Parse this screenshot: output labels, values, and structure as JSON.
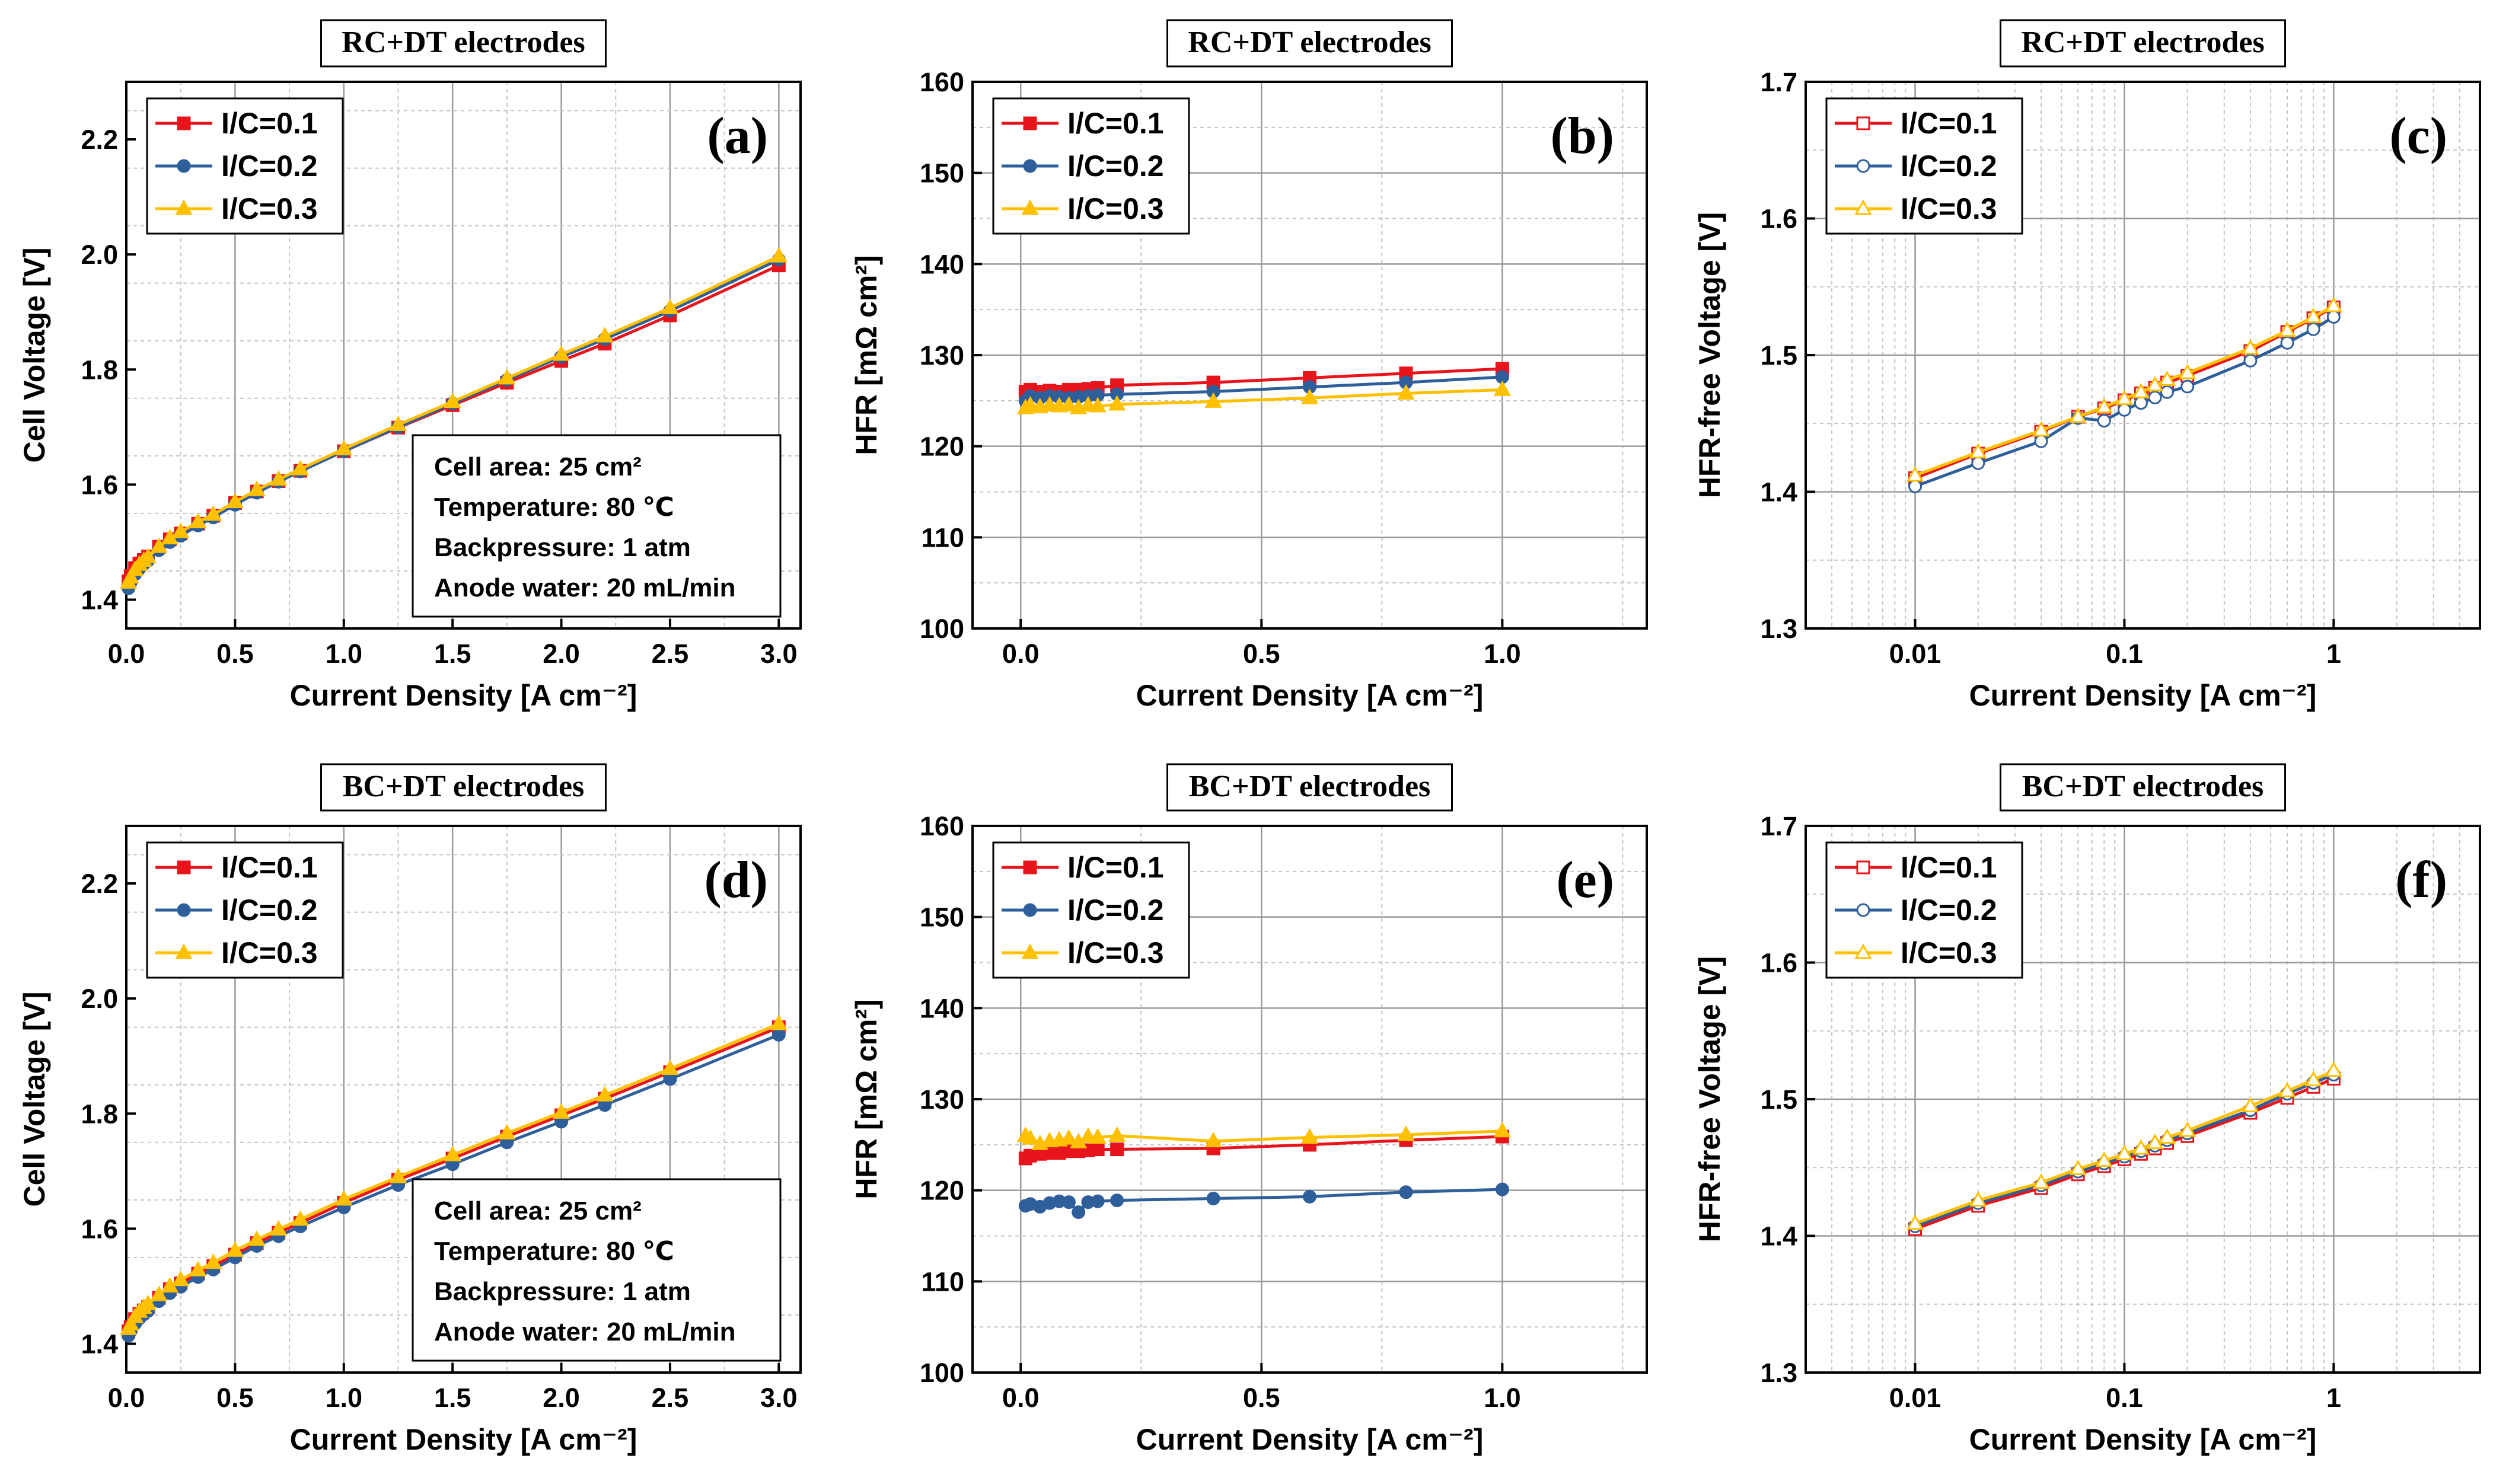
{
  "chart_data": [
    {
      "id": "a",
      "type": "line",
      "title": "RC+DT electrodes",
      "panel_label": "(a)",
      "xlabel": "Current Density [A cm⁻²]",
      "ylabel": "Cell Voltage [V]",
      "xscale": "linear",
      "xlim": [
        0,
        3.1
      ],
      "ylim": [
        1.35,
        2.3
      ],
      "xticks": [
        0.0,
        0.5,
        1.0,
        1.5,
        2.0,
        2.5,
        3.0
      ],
      "xtick_labels": [
        "0.0",
        "0.5",
        "1.0",
        "1.5",
        "2.0",
        "2.5",
        "3.0"
      ],
      "yticks": [
        1.4,
        1.6,
        1.8,
        2.0,
        2.2
      ],
      "ytick_labels": [
        "1.4",
        "1.6",
        "1.8",
        "2.0",
        "2.2"
      ],
      "grid": true,
      "legend_position": "top-left",
      "series": [
        {
          "name": "I/C=0.1",
          "color": "#e8141c",
          "marker": "square",
          "filled": true,
          "x": [
            0.01,
            0.02,
            0.04,
            0.06,
            0.08,
            0.1,
            0.15,
            0.2,
            0.25,
            0.33,
            0.4,
            0.5,
            0.6,
            0.7,
            0.8,
            1.0,
            1.25,
            1.5,
            1.75,
            2.0,
            2.2,
            2.5,
            3.0
          ],
          "y": [
            1.432,
            1.441,
            1.455,
            1.463,
            1.469,
            1.475,
            1.492,
            1.505,
            1.515,
            1.532,
            1.546,
            1.568,
            1.588,
            1.606,
            1.624,
            1.658,
            1.699,
            1.738,
            1.777,
            1.815,
            1.845,
            1.894,
            1.981
          ]
        },
        {
          "name": "I/C=0.2",
          "color": "#2e5f9b",
          "marker": "circle",
          "filled": true,
          "x": [
            0.01,
            0.02,
            0.04,
            0.06,
            0.08,
            0.1,
            0.15,
            0.2,
            0.25,
            0.33,
            0.4,
            0.5,
            0.6,
            0.7,
            0.8,
            1.0,
            1.25,
            1.5,
            1.75,
            2.0,
            2.2,
            2.5,
            3.0
          ],
          "y": [
            1.42,
            1.43,
            1.444,
            1.454,
            1.462,
            1.468,
            1.486,
            1.5,
            1.511,
            1.529,
            1.543,
            1.565,
            1.586,
            1.605,
            1.623,
            1.658,
            1.7,
            1.741,
            1.782,
            1.822,
            1.853,
            1.902,
            1.991
          ]
        },
        {
          "name": "I/C=0.3",
          "color": "#ffc000",
          "marker": "triangle",
          "filled": true,
          "x": [
            0.01,
            0.02,
            0.04,
            0.06,
            0.08,
            0.1,
            0.15,
            0.2,
            0.25,
            0.33,
            0.4,
            0.5,
            0.6,
            0.7,
            0.8,
            1.0,
            1.25,
            1.5,
            1.75,
            2.0,
            2.2,
            2.5,
            3.0
          ],
          "y": [
            1.43,
            1.439,
            1.452,
            1.461,
            1.468,
            1.474,
            1.492,
            1.507,
            1.518,
            1.535,
            1.548,
            1.57,
            1.591,
            1.609,
            1.627,
            1.662,
            1.704,
            1.744,
            1.785,
            1.826,
            1.858,
            1.907,
            1.997
          ]
        }
      ],
      "info_box": [
        "Cell area: 25 cm²",
        "Temperature: 80 ℃",
        "Backpressure: 1 atm",
        "Anode water: 20 mL/min"
      ]
    },
    {
      "id": "b",
      "type": "line",
      "title": "RC+DT electrodes",
      "panel_label": "(b)",
      "xlabel": "Current Density [A cm⁻²]",
      "ylabel": "HFR [mΩ cm²]",
      "xscale": "linear",
      "xlim": [
        -0.1,
        1.3
      ],
      "ylim": [
        100,
        160
      ],
      "xticks": [
        0.0,
        0.5,
        1.0
      ],
      "xtick_labels": [
        "0.0",
        "0.5",
        "1.0"
      ],
      "yticks": [
        100,
        110,
        120,
        130,
        140,
        150,
        160
      ],
      "ytick_labels": [
        "100",
        "110",
        "120",
        "130",
        "140",
        "150",
        "160"
      ],
      "grid": true,
      "legend_position": "top-left",
      "series": [
        {
          "name": "I/C=0.1",
          "color": "#e8141c",
          "marker": "square",
          "filled": true,
          "x": [
            0.01,
            0.02,
            0.04,
            0.06,
            0.08,
            0.1,
            0.12,
            0.14,
            0.16,
            0.2,
            0.4,
            0.6,
            0.8,
            1.0
          ],
          "y": [
            126.0,
            126.2,
            126.0,
            126.1,
            126.0,
            126.2,
            126.2,
            126.3,
            126.4,
            126.7,
            127.0,
            127.5,
            128.0,
            128.5
          ]
        },
        {
          "name": "I/C=0.2",
          "color": "#2e5f9b",
          "marker": "circle",
          "filled": true,
          "x": [
            0.01,
            0.02,
            0.04,
            0.06,
            0.08,
            0.1,
            0.12,
            0.14,
            0.16,
            0.2,
            0.4,
            0.6,
            0.8,
            1.0
          ],
          "y": [
            125.0,
            125.5,
            125.3,
            125.5,
            125.4,
            125.3,
            125.4,
            125.5,
            125.6,
            125.7,
            126.0,
            126.5,
            127.0,
            127.6
          ]
        },
        {
          "name": "I/C=0.3",
          "color": "#ffc000",
          "marker": "triangle",
          "filled": true,
          "x": [
            0.01,
            0.02,
            0.04,
            0.06,
            0.08,
            0.1,
            0.12,
            0.14,
            0.16,
            0.2,
            0.4,
            0.6,
            0.8,
            1.0
          ],
          "y": [
            124.2,
            124.5,
            124.3,
            124.5,
            124.4,
            124.5,
            124.2,
            124.5,
            124.4,
            124.6,
            124.9,
            125.3,
            125.8,
            126.2
          ]
        }
      ]
    },
    {
      "id": "c",
      "type": "line",
      "title": "RC+DT electrodes",
      "panel_label": "(c)",
      "xlabel": "Current Density [A cm⁻²]",
      "ylabel": "HFR-free Voltage [V]",
      "xscale": "log",
      "xlim": [
        0.003,
        5
      ],
      "ylim": [
        1.3,
        1.7
      ],
      "xticks": [
        0.01,
        0.1,
        1
      ],
      "xtick_labels": [
        "0.01",
        "0.1",
        "1"
      ],
      "yticks": [
        1.3,
        1.4,
        1.5,
        1.6,
        1.7
      ],
      "ytick_labels": [
        "1.3",
        "1.4",
        "1.5",
        "1.6",
        "1.7"
      ],
      "grid": true,
      "legend_position": "top-left",
      "series": [
        {
          "name": "I/C=0.1",
          "color": "#e8141c",
          "marker": "square",
          "filled": false,
          "x": [
            0.01,
            0.02,
            0.04,
            0.06,
            0.08,
            0.1,
            0.12,
            0.14,
            0.16,
            0.2,
            0.4,
            0.6,
            0.8,
            1.0
          ],
          "y": [
            1.41,
            1.428,
            1.444,
            1.455,
            1.461,
            1.467,
            1.472,
            1.476,
            1.48,
            1.485,
            1.503,
            1.517,
            1.527,
            1.535
          ]
        },
        {
          "name": "I/C=0.2",
          "color": "#2e5f9b",
          "marker": "circle",
          "filled": false,
          "x": [
            0.01,
            0.02,
            0.04,
            0.06,
            0.08,
            0.1,
            0.12,
            0.14,
            0.16,
            0.2,
            0.4,
            0.6,
            0.8,
            1.0
          ],
          "y": [
            1.404,
            1.421,
            1.437,
            1.454,
            1.452,
            1.46,
            1.465,
            1.469,
            1.473,
            1.477,
            1.496,
            1.509,
            1.519,
            1.528
          ]
        },
        {
          "name": "I/C=0.3",
          "color": "#ffc000",
          "marker": "triangle",
          "filled": false,
          "x": [
            0.01,
            0.02,
            0.04,
            0.06,
            0.08,
            0.1,
            0.12,
            0.14,
            0.16,
            0.2,
            0.4,
            0.6,
            0.8,
            1.0
          ],
          "y": [
            1.412,
            1.429,
            1.445,
            1.455,
            1.462,
            1.468,
            1.473,
            1.478,
            1.482,
            1.487,
            1.505,
            1.518,
            1.528,
            1.536
          ]
        }
      ]
    },
    {
      "id": "d",
      "type": "line",
      "title": "BC+DT electrodes",
      "panel_label": "(d)",
      "xlabel": "Current Density [A cm⁻²]",
      "ylabel": "Cell Voltage [V]",
      "xscale": "linear",
      "xlim": [
        0,
        3.1
      ],
      "ylim": [
        1.35,
        2.3
      ],
      "xticks": [
        0.0,
        0.5,
        1.0,
        1.5,
        2.0,
        2.5,
        3.0
      ],
      "xtick_labels": [
        "0.0",
        "0.5",
        "1.0",
        "1.5",
        "2.0",
        "2.5",
        "3.0"
      ],
      "yticks": [
        1.4,
        1.6,
        1.8,
        2.0,
        2.2
      ],
      "ytick_labels": [
        "1.4",
        "1.6",
        "1.8",
        "2.0",
        "2.2"
      ],
      "grid": true,
      "legend_position": "top-left",
      "series": [
        {
          "name": "I/C=0.1",
          "color": "#e8141c",
          "marker": "square",
          "filled": true,
          "x": [
            0.01,
            0.02,
            0.04,
            0.06,
            0.08,
            0.1,
            0.15,
            0.2,
            0.25,
            0.33,
            0.4,
            0.5,
            0.6,
            0.7,
            0.8,
            1.0,
            1.25,
            1.5,
            1.75,
            2.0,
            2.2,
            2.5,
            3.0
          ],
          "y": [
            1.422,
            1.43,
            1.443,
            1.452,
            1.458,
            1.464,
            1.48,
            1.495,
            1.505,
            1.522,
            1.535,
            1.555,
            1.575,
            1.593,
            1.61,
            1.645,
            1.685,
            1.722,
            1.76,
            1.797,
            1.826,
            1.872,
            1.95
          ]
        },
        {
          "name": "I/C=0.2",
          "color": "#2e5f9b",
          "marker": "circle",
          "filled": true,
          "x": [
            0.01,
            0.02,
            0.04,
            0.06,
            0.08,
            0.1,
            0.15,
            0.2,
            0.25,
            0.33,
            0.4,
            0.5,
            0.6,
            0.7,
            0.8,
            1.0,
            1.25,
            1.5,
            1.75,
            2.0,
            2.2,
            2.5,
            3.0
          ],
          "y": [
            1.414,
            1.422,
            1.435,
            1.444,
            1.451,
            1.457,
            1.474,
            1.488,
            1.499,
            1.516,
            1.529,
            1.55,
            1.57,
            1.587,
            1.604,
            1.637,
            1.676,
            1.712,
            1.75,
            1.786,
            1.815,
            1.86,
            1.937
          ]
        },
        {
          "name": "I/C=0.3",
          "color": "#ffc000",
          "marker": "triangle",
          "filled": true,
          "x": [
            0.01,
            0.02,
            0.04,
            0.06,
            0.08,
            0.1,
            0.15,
            0.2,
            0.25,
            0.33,
            0.4,
            0.5,
            0.6,
            0.7,
            0.8,
            1.0,
            1.25,
            1.5,
            1.75,
            2.0,
            2.2,
            2.5,
            3.0
          ],
          "y": [
            1.426,
            1.434,
            1.447,
            1.456,
            1.463,
            1.469,
            1.485,
            1.5,
            1.511,
            1.528,
            1.541,
            1.562,
            1.581,
            1.599,
            1.616,
            1.651,
            1.69,
            1.728,
            1.766,
            1.802,
            1.832,
            1.878,
            1.956
          ]
        }
      ],
      "info_box": [
        "Cell area: 25 cm²",
        "Temperature: 80 ℃",
        "Backpressure: 1 atm",
        "Anode water: 20 mL/min"
      ]
    },
    {
      "id": "e",
      "type": "line",
      "title": "BC+DT electrodes",
      "panel_label": "(e)",
      "xlabel": "Current Density [A cm⁻²]",
      "ylabel": "HFR [mΩ cm²]",
      "xscale": "linear",
      "xlim": [
        -0.1,
        1.3
      ],
      "ylim": [
        100,
        160
      ],
      "xticks": [
        0.0,
        0.5,
        1.0
      ],
      "xtick_labels": [
        "0.0",
        "0.5",
        "1.0"
      ],
      "yticks": [
        100,
        110,
        120,
        130,
        140,
        150,
        160
      ],
      "ytick_labels": [
        "100",
        "110",
        "120",
        "130",
        "140",
        "150",
        "160"
      ],
      "grid": true,
      "legend_position": "top-left",
      "series": [
        {
          "name": "I/C=0.1",
          "color": "#e8141c",
          "marker": "square",
          "filled": true,
          "x": [
            0.01,
            0.02,
            0.04,
            0.06,
            0.08,
            0.1,
            0.12,
            0.14,
            0.16,
            0.2,
            0.4,
            0.6,
            0.8,
            1.0
          ],
          "y": [
            123.5,
            123.8,
            124.0,
            124.1,
            124.1,
            124.3,
            124.3,
            124.4,
            124.5,
            124.5,
            124.6,
            125.0,
            125.5,
            125.9
          ]
        },
        {
          "name": "I/C=0.2",
          "color": "#2e5f9b",
          "marker": "circle",
          "filled": true,
          "x": [
            0.01,
            0.02,
            0.04,
            0.06,
            0.08,
            0.1,
            0.12,
            0.14,
            0.16,
            0.2,
            0.4,
            0.6,
            0.8,
            1.0
          ],
          "y": [
            118.3,
            118.5,
            118.2,
            118.6,
            118.8,
            118.7,
            117.6,
            118.7,
            118.8,
            118.9,
            119.1,
            119.3,
            119.8,
            120.1
          ]
        },
        {
          "name": "I/C=0.3",
          "color": "#ffc000",
          "marker": "triangle",
          "filled": true,
          "x": [
            0.01,
            0.02,
            0.04,
            0.06,
            0.08,
            0.1,
            0.12,
            0.14,
            0.16,
            0.2,
            0.4,
            0.6,
            0.8,
            1.0
          ],
          "y": [
            126.0,
            125.7,
            125.1,
            125.4,
            125.5,
            125.7,
            125.3,
            125.9,
            125.8,
            126.0,
            125.4,
            125.8,
            126.1,
            126.5
          ]
        }
      ]
    },
    {
      "id": "f",
      "type": "line",
      "title": "BC+DT electrodes",
      "panel_label": "(f)",
      "xlabel": "Current Density [A cm⁻²]",
      "ylabel": "HFR-free Voltage [V]",
      "xscale": "log",
      "xlim": [
        0.003,
        5
      ],
      "ylim": [
        1.3,
        1.7
      ],
      "xticks": [
        0.01,
        0.1,
        1
      ],
      "xtick_labels": [
        "0.01",
        "0.1",
        "1"
      ],
      "yticks": [
        1.3,
        1.4,
        1.5,
        1.6,
        1.7
      ],
      "ytick_labels": [
        "1.3",
        "1.4",
        "1.5",
        "1.6",
        "1.7"
      ],
      "grid": true,
      "legend_position": "top-left",
      "series": [
        {
          "name": "I/C=0.1",
          "color": "#e8141c",
          "marker": "square",
          "filled": false,
          "x": [
            0.01,
            0.02,
            0.04,
            0.06,
            0.08,
            0.1,
            0.12,
            0.14,
            0.16,
            0.2,
            0.4,
            0.6,
            0.8,
            1.0
          ],
          "y": [
            1.405,
            1.422,
            1.435,
            1.445,
            1.451,
            1.456,
            1.46,
            1.464,
            1.468,
            1.473,
            1.49,
            1.501,
            1.509,
            1.515
          ]
        },
        {
          "name": "I/C=0.2",
          "color": "#2e5f9b",
          "marker": "circle",
          "filled": false,
          "x": [
            0.01,
            0.02,
            0.04,
            0.06,
            0.08,
            0.1,
            0.12,
            0.14,
            0.16,
            0.2,
            0.4,
            0.6,
            0.8,
            1.0
          ],
          "y": [
            1.407,
            1.424,
            1.437,
            1.447,
            1.453,
            1.458,
            1.462,
            1.466,
            1.47,
            1.475,
            1.492,
            1.504,
            1.512,
            1.518
          ]
        },
        {
          "name": "I/C=0.3",
          "color": "#ffc000",
          "marker": "triangle",
          "filled": false,
          "x": [
            0.01,
            0.02,
            0.04,
            0.06,
            0.08,
            0.1,
            0.12,
            0.14,
            0.16,
            0.2,
            0.4,
            0.6,
            0.8,
            1.0
          ],
          "y": [
            1.409,
            1.426,
            1.439,
            1.449,
            1.455,
            1.46,
            1.464,
            1.468,
            1.472,
            1.477,
            1.495,
            1.506,
            1.514,
            1.521
          ]
        }
      ]
    }
  ]
}
